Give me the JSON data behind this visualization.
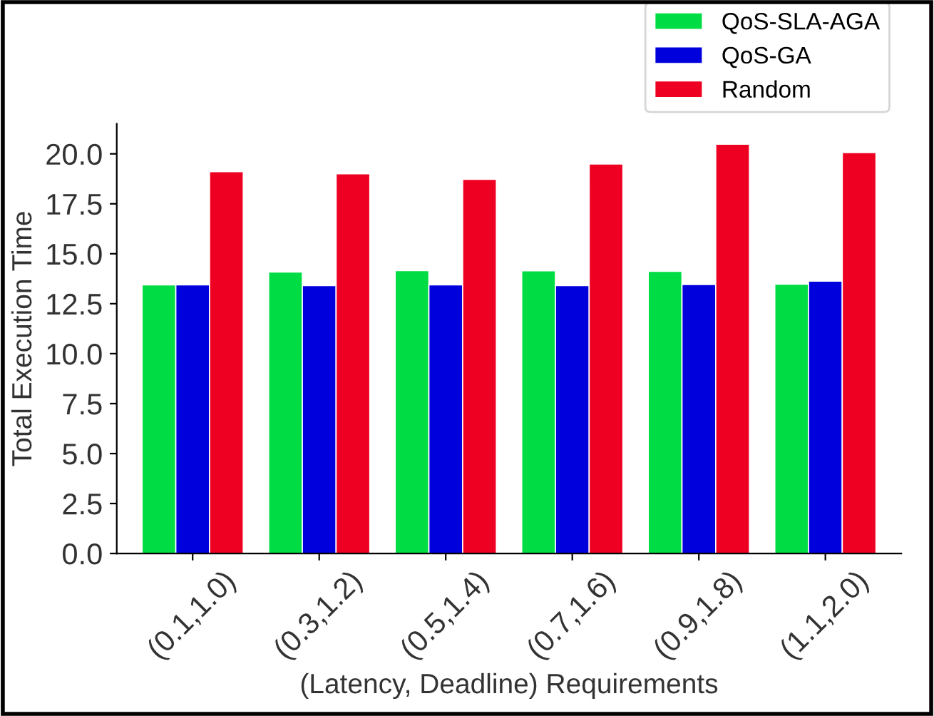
{
  "chart_data": {
    "type": "bar",
    "xlabel": "(Latency, Deadline) Requirements",
    "ylabel": "Total Execution Time",
    "categories": [
      "(0.1,1.0)",
      "(0.3,1.2)",
      "(0.5,1.4)",
      "(0.7,1.6)",
      "(0.9,1.8)",
      "(1.1,2.0)"
    ],
    "series": [
      {
        "name": "QoS-SLA-AGA",
        "color": "#00dd44",
        "values": [
          13.44,
          14.09,
          14.16,
          14.15,
          14.12,
          13.48
        ]
      },
      {
        "name": "QoS-GA",
        "color": "#0000dd",
        "values": [
          13.44,
          13.41,
          13.44,
          13.41,
          13.46,
          13.63
        ]
      },
      {
        "name": "Random",
        "color": "#ee0022",
        "values": [
          19.11,
          19.0,
          18.73,
          19.49,
          20.48,
          20.06
        ]
      }
    ],
    "ylim": [
      0,
      21.5
    ],
    "yticks": [
      {
        "value": 0,
        "label": "0.0"
      },
      {
        "value": 2.5,
        "label": "2.5"
      },
      {
        "value": 5,
        "label": "5.0"
      },
      {
        "value": 7.5,
        "label": "7.5"
      },
      {
        "value": 10,
        "label": "10.0"
      },
      {
        "value": 12.5,
        "label": "12.5"
      },
      {
        "value": 15,
        "label": "15.0"
      },
      {
        "value": 17.5,
        "label": "17.5"
      },
      {
        "value": 20,
        "label": "20.0"
      }
    ],
    "grid": false,
    "legend": "top right"
  }
}
